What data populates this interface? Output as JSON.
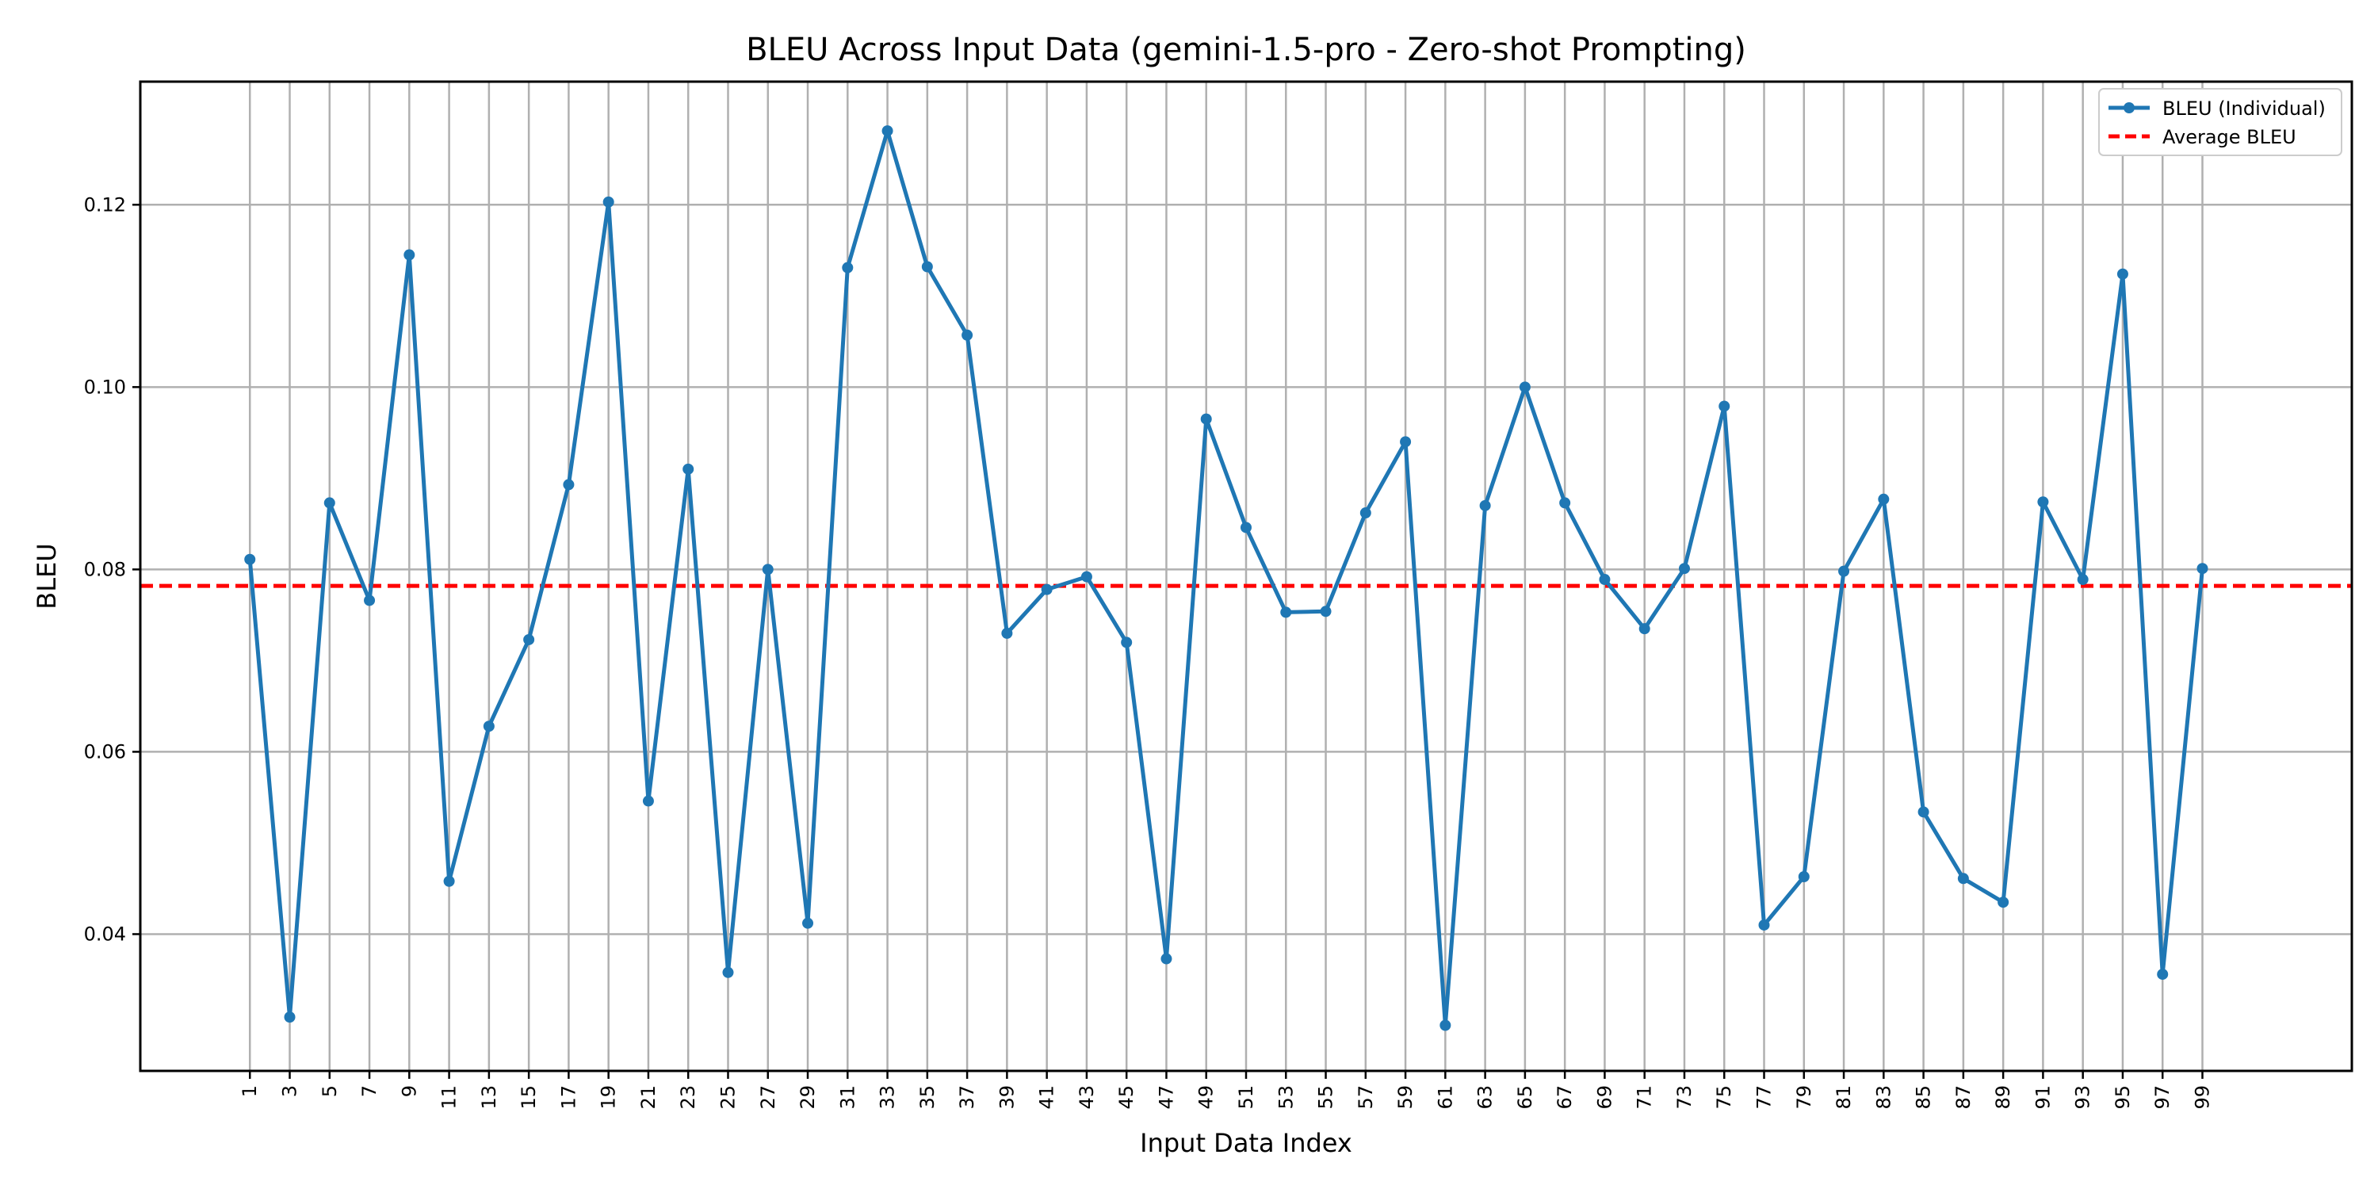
{
  "chart_data": {
    "type": "line",
    "title": "BLEU Across Input Data (gemini-1.5-pro - Zero-shot Prompting)",
    "xlabel": "Input Data Index",
    "ylabel": "BLEU",
    "grid": true,
    "legend_position": "top-right",
    "xlim": [
      -4.5,
      106.5
    ],
    "ylim": [
      0.025,
      0.1335
    ],
    "yticks": [
      0.04,
      0.06,
      0.08,
      0.1,
      0.12
    ],
    "ytick_labels": [
      "0.04",
      "0.06",
      "0.08",
      "0.10",
      "0.12"
    ],
    "x": [
      1,
      3,
      5,
      7,
      9,
      11,
      13,
      15,
      17,
      19,
      21,
      23,
      25,
      27,
      29,
      31,
      33,
      35,
      37,
      39,
      41,
      43,
      45,
      47,
      49,
      51,
      53,
      55,
      57,
      59,
      61,
      63,
      65,
      67,
      69,
      71,
      73,
      75,
      77,
      79,
      81,
      83,
      85,
      87,
      89,
      91,
      93,
      95,
      97,
      99
    ],
    "xtick_labels": [
      "1",
      "3",
      "5",
      "7",
      "9",
      "11",
      "13",
      "15",
      "17",
      "19",
      "21",
      "23",
      "25",
      "27",
      "29",
      "31",
      "33",
      "35",
      "37",
      "39",
      "41",
      "43",
      "45",
      "47",
      "49",
      "51",
      "53",
      "55",
      "57",
      "59",
      "61",
      "63",
      "65",
      "67",
      "69",
      "71",
      "73",
      "75",
      "77",
      "79",
      "81",
      "83",
      "85",
      "87",
      "89",
      "91",
      "93",
      "95",
      "97",
      "99"
    ],
    "series": [
      {
        "name": "BLEU (Individual)",
        "color": "#1f77b4",
        "style": "solid",
        "marker": "circle",
        "values": [
          0.0811,
          0.0309,
          0.0873,
          0.0766,
          0.1145,
          0.0458,
          0.0628,
          0.0723,
          0.0893,
          0.1203,
          0.0546,
          0.091,
          0.0358,
          0.08,
          0.0412,
          0.1131,
          0.1281,
          0.1132,
          0.1057,
          0.073,
          0.0778,
          0.0792,
          0.072,
          0.0373,
          0.0965,
          0.0846,
          0.0753,
          0.0754,
          0.0862,
          0.094,
          0.03,
          0.087,
          0.1,
          0.0873,
          0.0789,
          0.0735,
          0.0801,
          0.0979,
          0.041,
          0.0463,
          0.0798,
          0.0877,
          0.0534,
          0.0461,
          0.0435,
          0.0874,
          0.0789,
          0.1124,
          0.0356,
          0.0801
        ]
      },
      {
        "name": "Average BLEU",
        "color": "#ff0000",
        "style": "dashed",
        "value": 0.0782
      }
    ]
  }
}
